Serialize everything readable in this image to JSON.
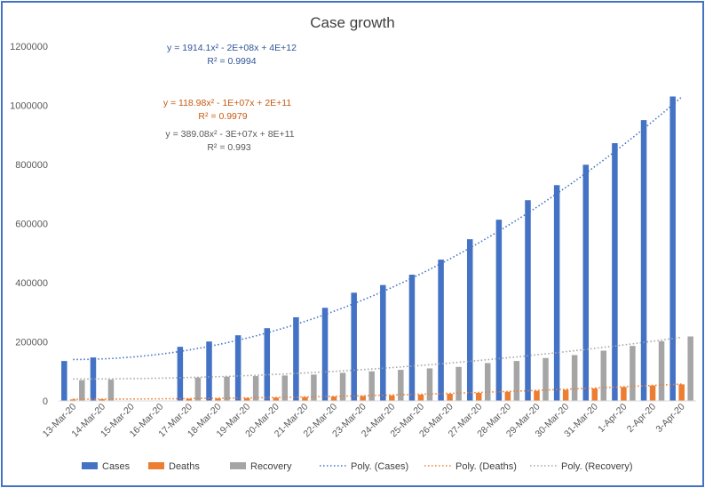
{
  "chart_data": {
    "type": "bar",
    "title": "Case growth",
    "xlabel": "",
    "ylabel": "",
    "ylim": [
      0,
      1200000
    ],
    "yticks": [
      "0",
      "200000",
      "400000",
      "600000",
      "800000",
      "1000000",
      "1200000"
    ],
    "ytick_values": [
      0,
      200000,
      400000,
      600000,
      800000,
      1000000,
      1200000
    ],
    "grid": false,
    "legend_position": "bottom",
    "categories": [
      "13-Mar-20",
      "14-Mar-20",
      "15-Mar-20",
      "16-Mar-20",
      "17-Mar-20",
      "18-Mar-20",
      "19-Mar-20",
      "20-Mar-20",
      "21-Mar-20",
      "22-Mar-20",
      "23-Mar-20",
      "24-Mar-20",
      "25-Mar-20",
      "26-Mar-20",
      "27-Mar-20",
      "28-Mar-20",
      "29-Mar-20",
      "30-Mar-20",
      "31-Mar-20",
      "1-Apr-20",
      "2-Apr-20",
      "3-Apr-20"
    ],
    "series": [
      {
        "name": "Cases",
        "color": "#4472c4",
        "values": [
          135000,
          147000,
          null,
          null,
          183000,
          201000,
          222000,
          246000,
          283000,
          315000,
          366000,
          392000,
          427000,
          478000,
          547000,
          613000,
          679000,
          730000,
          799000,
          872000,
          950000,
          1030000
        ]
      },
      {
        "name": "Deaths",
        "color": "#ed7d31",
        "values": [
          5000,
          5400,
          null,
          null,
          7500,
          8700,
          9800,
          11200,
          13000,
          14600,
          16500,
          18600,
          21300,
          24100,
          27300,
          30900,
          34000,
          37600,
          42100,
          46900,
          52100,
          56000
        ]
      },
      {
        "name": "Recovery",
        "color": "#a5a5a5",
        "values": [
          70000,
          72000,
          null,
          null,
          79000,
          82000,
          84000,
          86000,
          89000,
          95000,
          100000,
          105000,
          110000,
          115000,
          128000,
          135000,
          145000,
          155000,
          170000,
          186000,
          202000,
          218000
        ]
      }
    ],
    "trendlines": [
      {
        "name": "Poly. (Cases)",
        "color": "#4472c4",
        "equation": "y = 1914.1x² - 2E+08x + 4E+12",
        "r2": "R² = 0.9994",
        "start": 140000,
        "min": 140000,
        "end": 1028000
      },
      {
        "name": "Poly. (Deaths)",
        "color": "#ed7d31",
        "equation": "y = 118.98x² - 1E+07x + 2E+11",
        "r2": "R² = 0.9979",
        "start": 6000,
        "min": 6000,
        "end": 57000
      },
      {
        "name": "Poly. (Recovery)",
        "color": "#a5a5a5",
        "equation": "y = 389.08x² - 3E+07x + 8E+11",
        "r2": "R² = 0.993",
        "start": 76000,
        "min": 74000,
        "end": 215000
      }
    ]
  }
}
